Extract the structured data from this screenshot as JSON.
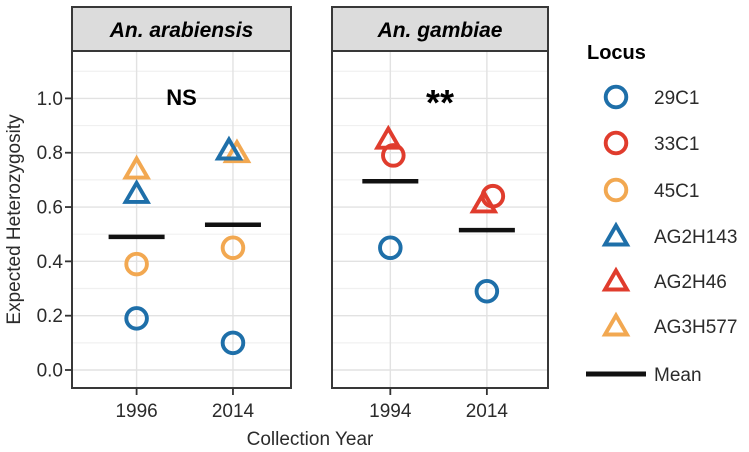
{
  "figure_name": "expected-heterozygosity-by-collection-year",
  "chart_data": {
    "type": "scatter",
    "xlabel": "Collection Year",
    "ylabel": "Expected Heterozygosity",
    "ylim": [
      0.0,
      1.0
    ],
    "yticks": [
      "0.0",
      "0.2",
      "0.4",
      "0.6",
      "0.8",
      "1.0"
    ],
    "grid": "major and minor horizontal, major vertical at categories",
    "legend_position": "right",
    "facets": [
      {
        "label": "An. arabiensis",
        "significance": "NS",
        "categories": [
          "1996",
          "2014"
        ],
        "points": [
          {
            "locus": "AG3H577",
            "year": "1996",
            "value": 0.74,
            "dx": 0
          },
          {
            "locus": "AG2H143",
            "year": "1996",
            "value": 0.65,
            "dx": 0
          },
          {
            "locus": "45C1",
            "year": "1996",
            "value": 0.39,
            "dx": 0
          },
          {
            "locus": "29C1",
            "year": "1996",
            "value": 0.19,
            "dx": 0
          },
          {
            "locus": "AG3H577",
            "year": "2014",
            "value": 0.8,
            "dx": 4
          },
          {
            "locus": "AG2H143",
            "year": "2014",
            "value": 0.81,
            "dx": -4
          },
          {
            "locus": "45C1",
            "year": "2014",
            "value": 0.45,
            "dx": 0
          },
          {
            "locus": "29C1",
            "year": "2014",
            "value": 0.1,
            "dx": 0
          }
        ],
        "means": [
          {
            "year": "1996",
            "value": 0.49
          },
          {
            "year": "2014",
            "value": 0.535
          }
        ]
      },
      {
        "label": "An. gambiae",
        "significance": "**",
        "categories": [
          "1994",
          "2014"
        ],
        "points": [
          {
            "locus": "AG2H46",
            "year": "1994",
            "value": 0.85,
            "dx": -2
          },
          {
            "locus": "33C1",
            "year": "1994",
            "value": 0.79,
            "dx": 3
          },
          {
            "locus": "29C1",
            "year": "1994",
            "value": 0.45,
            "dx": 0
          },
          {
            "locus": "AG2H46",
            "year": "2014",
            "value": 0.615,
            "dx": -3
          },
          {
            "locus": "33C1",
            "year": "2014",
            "value": 0.64,
            "dx": 6
          },
          {
            "locus": "29C1",
            "year": "2014",
            "value": 0.29,
            "dx": 0
          }
        ],
        "means": [
          {
            "year": "1994",
            "value": 0.695
          },
          {
            "year": "2014",
            "value": 0.515
          }
        ]
      }
    ],
    "loci": {
      "29C1": {
        "shape": "circle",
        "color": "#1E6FA9"
      },
      "33C1": {
        "shape": "circle",
        "color": "#E03C2D"
      },
      "45C1": {
        "shape": "circle",
        "color": "#F2A851"
      },
      "AG2H143": {
        "shape": "triangle",
        "color": "#1E6FA9"
      },
      "AG2H46": {
        "shape": "triangle",
        "color": "#E03C2D"
      },
      "AG3H577": {
        "shape": "triangle",
        "color": "#F2A851"
      }
    },
    "legend": {
      "title": "Locus",
      "items": [
        "29C1",
        "33C1",
        "45C1",
        "AG2H143",
        "AG2H46",
        "AG3H577"
      ],
      "mean_label": "Mean"
    }
  },
  "colors": {
    "blue": "#1E6FA9",
    "red": "#E03C2D",
    "orange": "#F2A851",
    "mean_line": "#111111",
    "strip_fill": "#DCDCDC",
    "panel_border": "#383838",
    "grid_major": "#E2E2E2",
    "grid_minor": "#F0F0F0",
    "text": "#2B2B2B"
  }
}
